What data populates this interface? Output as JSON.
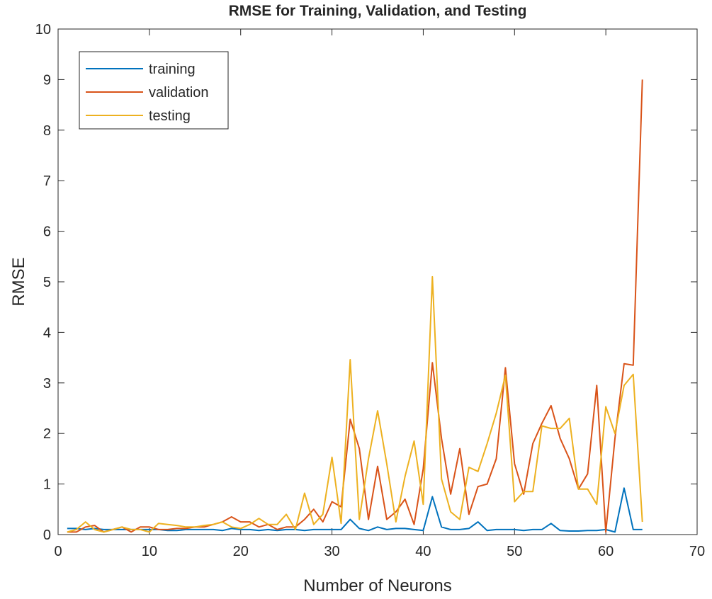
{
  "chart_data": {
    "type": "line",
    "title": "RMSE for Training, Validation, and Testing",
    "xlabel": "Number of Neurons",
    "ylabel": "RMSE",
    "xlim": [
      0,
      70
    ],
    "ylim": [
      0,
      10
    ],
    "xticks": [
      0,
      10,
      20,
      30,
      40,
      50,
      60,
      70
    ],
    "yticks": [
      0,
      1,
      2,
      3,
      4,
      5,
      6,
      7,
      8,
      9,
      10
    ],
    "grid": false,
    "legend_position": "top-left",
    "x": [
      1,
      2,
      3,
      4,
      5,
      6,
      7,
      8,
      9,
      10,
      11,
      12,
      13,
      14,
      15,
      16,
      17,
      18,
      19,
      20,
      21,
      22,
      23,
      24,
      25,
      26,
      27,
      28,
      29,
      30,
      31,
      32,
      33,
      34,
      35,
      36,
      37,
      38,
      39,
      40,
      41,
      42,
      43,
      44,
      45,
      46,
      47,
      48,
      49,
      50,
      51,
      52,
      53,
      54,
      55,
      56,
      57,
      58,
      59,
      60,
      61,
      62,
      63,
      64
    ],
    "series": [
      {
        "name": "training",
        "color": "#0072BD",
        "values": [
          0.12,
          0.12,
          0.1,
          0.12,
          0.1,
          0.1,
          0.1,
          0.1,
          0.1,
          0.1,
          0.1,
          0.08,
          0.08,
          0.1,
          0.1,
          0.1,
          0.1,
          0.08,
          0.12,
          0.1,
          0.1,
          0.08,
          0.1,
          0.08,
          0.1,
          0.1,
          0.08,
          0.1,
          0.1,
          0.1,
          0.1,
          0.3,
          0.12,
          0.08,
          0.15,
          0.1,
          0.12,
          0.12,
          0.1,
          0.08,
          0.75,
          0.15,
          0.1,
          0.1,
          0.12,
          0.25,
          0.08,
          0.1,
          0.1,
          0.1,
          0.08,
          0.1,
          0.1,
          0.22,
          0.08,
          0.07,
          0.07,
          0.08,
          0.08,
          0.1,
          0.05,
          0.92,
          0.1,
          0.1
        ]
      },
      {
        "name": "validation",
        "color": "#D95319",
        "values": [
          0.05,
          0.05,
          0.15,
          0.18,
          0.05,
          0.1,
          0.15,
          0.05,
          0.15,
          0.15,
          0.1,
          0.1,
          0.12,
          0.12,
          0.15,
          0.15,
          0.2,
          0.25,
          0.35,
          0.25,
          0.25,
          0.15,
          0.2,
          0.1,
          0.15,
          0.15,
          0.3,
          0.5,
          0.25,
          0.65,
          0.55,
          2.28,
          1.7,
          0.3,
          1.35,
          0.3,
          0.45,
          0.7,
          0.2,
          1.3,
          3.4,
          1.9,
          0.8,
          1.7,
          0.4,
          0.95,
          1.0,
          1.5,
          3.3,
          1.4,
          0.8,
          1.8,
          2.2,
          2.55,
          1.9,
          1.5,
          0.9,
          1.2,
          2.95,
          0.05,
          1.9,
          3.38,
          3.35,
          9.0
        ]
      },
      {
        "name": "testing",
        "color": "#EDB120",
        "values": [
          0.05,
          0.1,
          0.25,
          0.1,
          0.05,
          0.1,
          0.15,
          0.1,
          0.1,
          0.05,
          0.22,
          0.2,
          0.18,
          0.15,
          0.15,
          0.18,
          0.2,
          0.25,
          0.15,
          0.12,
          0.2,
          0.32,
          0.2,
          0.2,
          0.4,
          0.1,
          0.82,
          0.2,
          0.4,
          1.53,
          0.22,
          3.46,
          0.3,
          1.5,
          2.45,
          1.4,
          0.25,
          1.15,
          1.85,
          0.6,
          5.1,
          1.1,
          0.45,
          0.3,
          1.33,
          1.25,
          1.8,
          2.4,
          3.15,
          0.65,
          0.85,
          0.85,
          2.15,
          2.1,
          2.1,
          2.3,
          0.9,
          0.9,
          0.6,
          2.53,
          2.0,
          2.95,
          3.17,
          0.25
        ]
      }
    ]
  }
}
